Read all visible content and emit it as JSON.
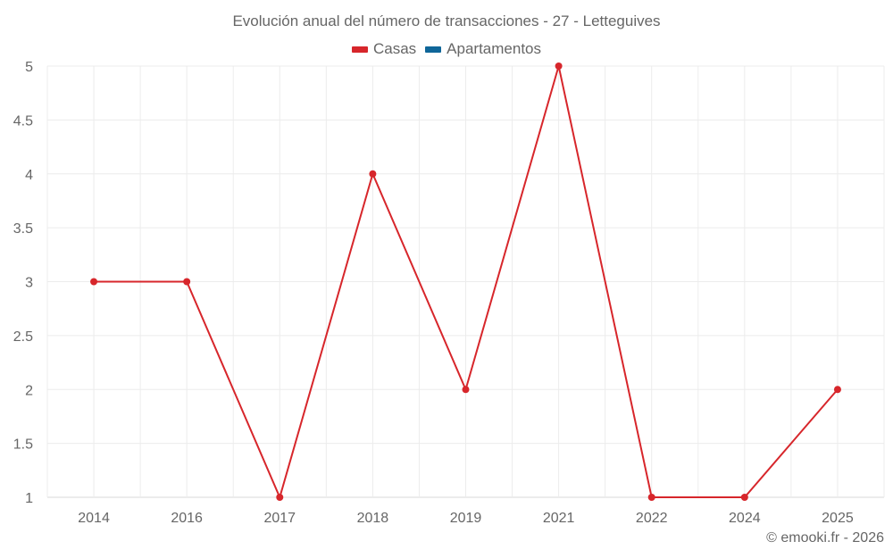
{
  "chart_data": {
    "type": "line",
    "title": "Evolución anual del número de transacciones - 27 - Letteguives",
    "categories": [
      "2014",
      "2016",
      "2017",
      "2018",
      "2019",
      "2021",
      "2022",
      "2024",
      "2025"
    ],
    "series": [
      {
        "name": "Casas",
        "color": "#d7262b",
        "values": [
          3,
          3,
          1,
          4,
          2,
          5,
          1,
          1,
          2
        ]
      },
      {
        "name": "Apartamentos",
        "color": "#0f6699",
        "values": []
      }
    ],
    "xlabel": "",
    "ylabel": "",
    "ylim": [
      1,
      5
    ],
    "yticks": [
      "1",
      "1.5",
      "2",
      "2.5",
      "3",
      "3.5",
      "4",
      "4.5",
      "5"
    ],
    "grid": true,
    "legend_position": "top"
  },
  "legend": [
    {
      "label": "Casas",
      "color": "#d7262b"
    },
    {
      "label": "Apartamentos",
      "color": "#0f6699"
    }
  ],
  "credit": "© emooki.fr - 2026"
}
